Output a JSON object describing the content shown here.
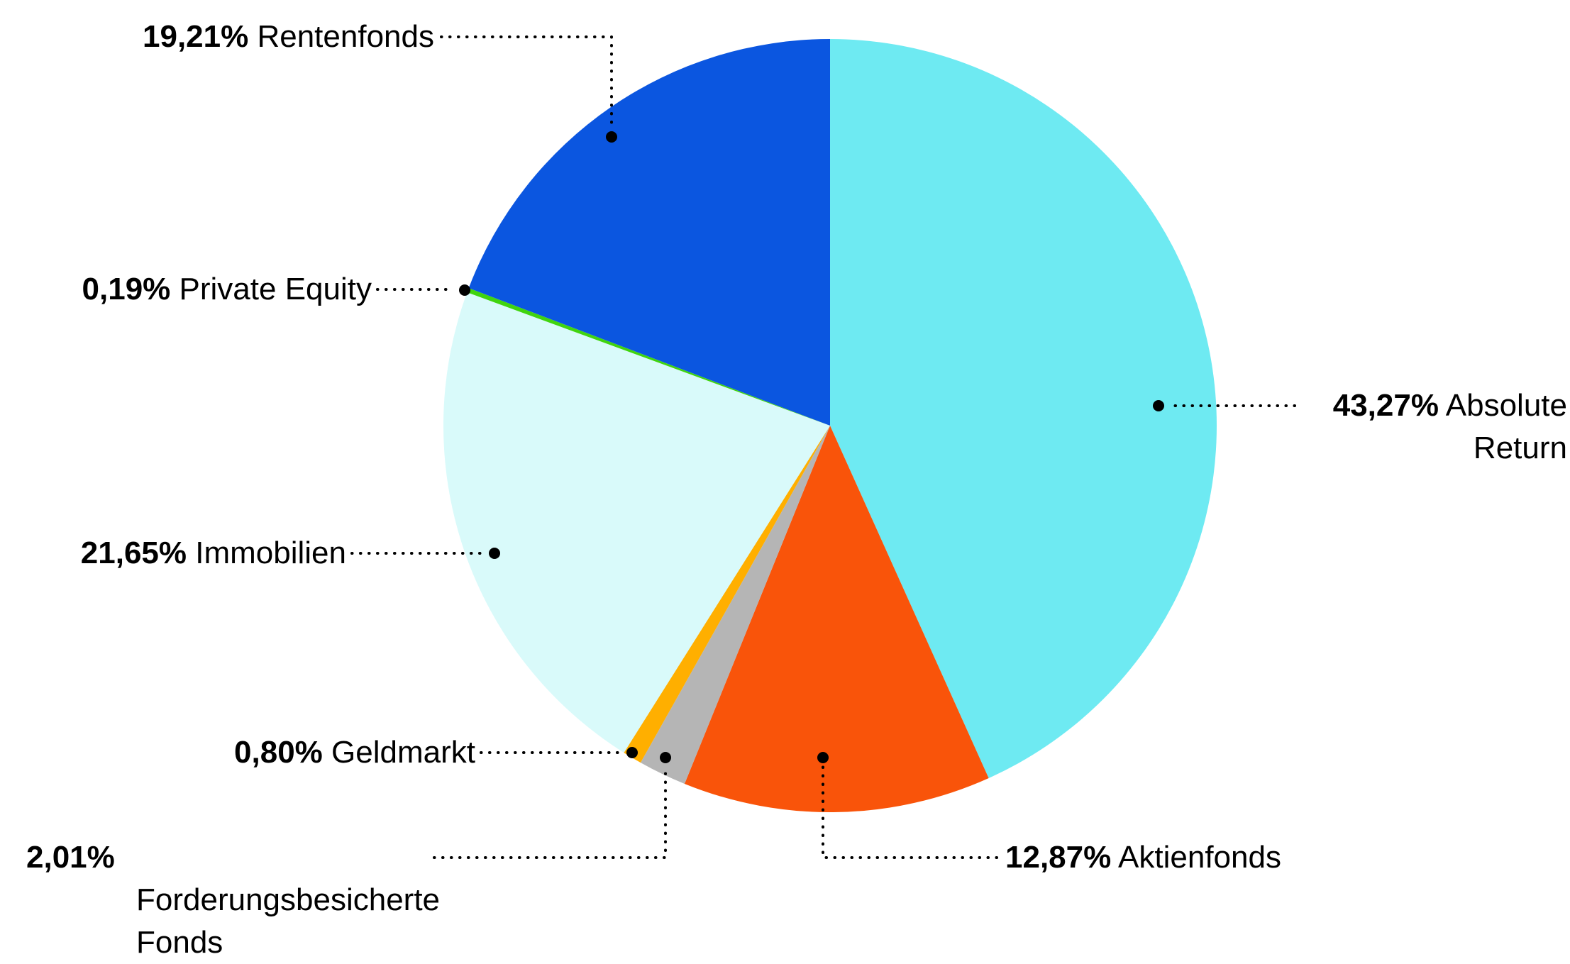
{
  "background": "#FFFFFF",
  "chart_data": {
    "type": "pie",
    "title": "",
    "unit": "%",
    "start_angle_deg": 0,
    "direction": "clockwise",
    "legend_position": "callout-labels",
    "slices": [
      {
        "label": "Absolute Return",
        "display": "43,27%",
        "value": 43.27,
        "color": "#6EEAF2"
      },
      {
        "label": "Aktienfonds",
        "display": "12,87%",
        "value": 12.87,
        "color": "#F9540A"
      },
      {
        "label": "Forderungsbesicherte Fonds",
        "display": "2,01%",
        "value": 2.01,
        "color": "#B5B5B5"
      },
      {
        "label": "Geldmarkt",
        "display": "0,80%",
        "value": 0.8,
        "color": "#FFAF00"
      },
      {
        "label": "Immobilien",
        "display": "21,65%",
        "value": 21.65,
        "color": "#D9FAFA"
      },
      {
        "label": "Private Equity",
        "display": "0,19%",
        "value": 0.19,
        "color": "#40D40F"
      },
      {
        "label": "Rentenfonds",
        "display": "19,21%",
        "value": 19.21,
        "color": "#0B56E0"
      }
    ]
  }
}
